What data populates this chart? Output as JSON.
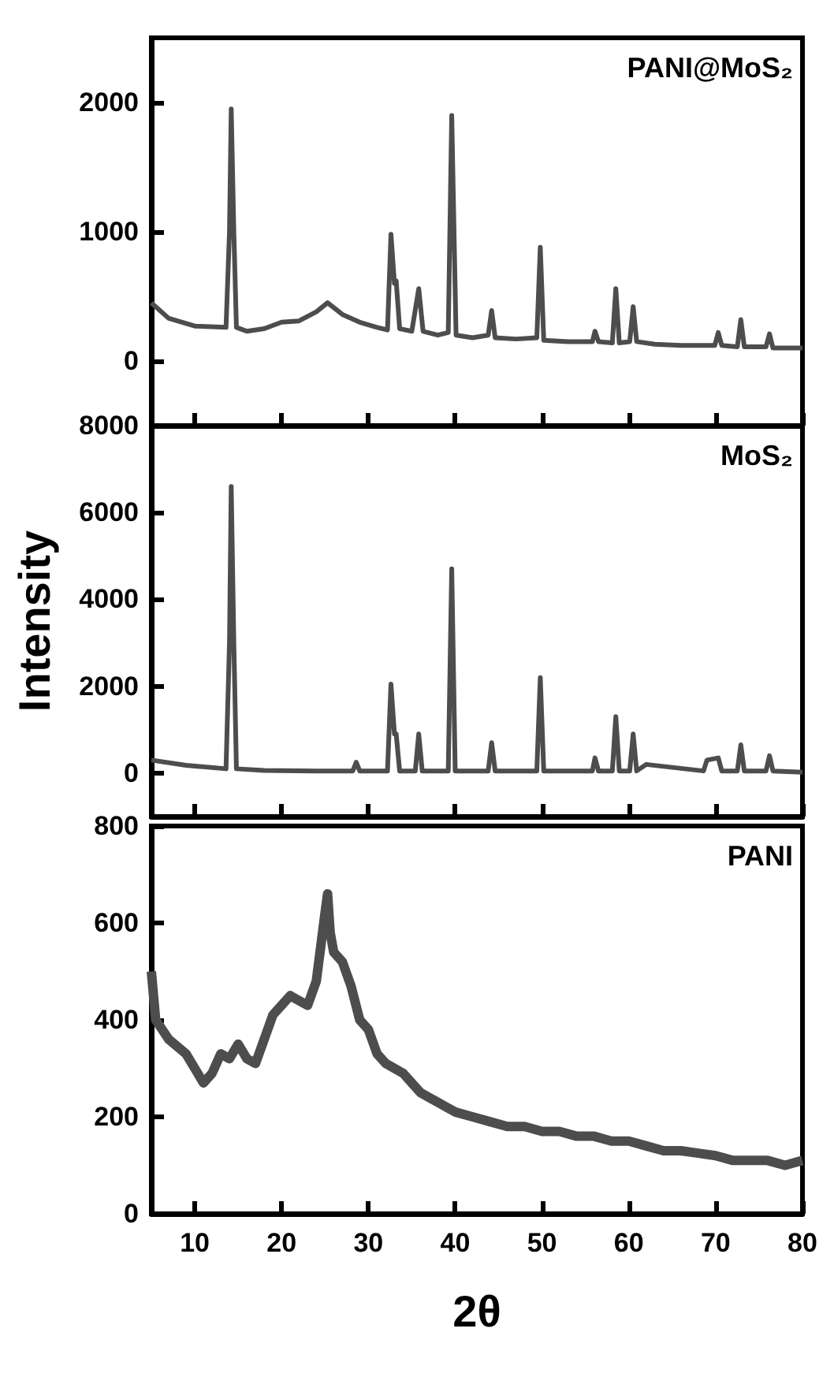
{
  "chart_data": [
    {
      "type": "line",
      "annotations": [
        "PANI@MoS₂"
      ],
      "xlim": [
        5,
        80
      ],
      "xticks": [
        10,
        20,
        30,
        40,
        50,
        60,
        70,
        80
      ],
      "ylim": [
        -500,
        2500
      ],
      "yticks": [
        0,
        1000,
        2000
      ],
      "tick_labels": "y",
      "x": [
        5,
        7,
        10,
        13.6,
        14.0,
        14.2,
        14.5,
        14.8,
        16,
        18,
        20,
        22,
        24,
        25.3,
        27,
        29,
        31,
        32.2,
        32.6,
        33.0,
        33.2,
        33.6,
        35,
        35.8,
        36.3,
        38,
        39.2,
        39.6,
        40.1,
        42,
        43.8,
        44.2,
        44.6,
        47,
        49.4,
        49.8,
        50.2,
        53,
        55.8,
        56.1,
        56.5,
        58.1,
        58.5,
        58.9,
        60.1,
        60.5,
        60.9,
        63,
        66,
        69.9,
        70.3,
        70.7,
        72.5,
        72.9,
        73.3,
        75.8,
        76.2,
        76.6,
        80
      ],
      "series": [
        {
          "color": "#4d4d4d",
          "values": [
            450,
            330,
            270,
            260,
            1000,
            1950,
            1000,
            260,
            230,
            250,
            300,
            310,
            380,
            450,
            360,
            300,
            260,
            240,
            980,
            600,
            620,
            250,
            230,
            560,
            230,
            200,
            220,
            1900,
            200,
            180,
            200,
            390,
            180,
            170,
            180,
            880,
            160,
            150,
            150,
            230,
            150,
            140,
            560,
            140,
            150,
            420,
            150,
            130,
            120,
            120,
            220,
            120,
            110,
            320,
            110,
            110,
            210,
            100,
            100
          ]
        }
      ]
    },
    {
      "type": "line",
      "ylabel": "Intensity",
      "annotations": [
        "MoS₂"
      ],
      "xlim": [
        5,
        80
      ],
      "xticks": [
        10,
        20,
        30,
        40,
        50,
        60,
        70,
        80
      ],
      "ylim": [
        -1000,
        8000
      ],
      "yticks": [
        0,
        2000,
        4000,
        6000,
        8000
      ],
      "tick_labels": "y",
      "x": [
        5,
        9,
        13.6,
        14.0,
        14.2,
        14.5,
        14.8,
        18,
        24,
        28.2,
        28.6,
        29,
        32.2,
        32.6,
        33.0,
        33.2,
        33.6,
        35.4,
        35.8,
        36.2,
        39.2,
        39.6,
        40.0,
        43.8,
        44.2,
        44.6,
        49.4,
        49.8,
        50.2,
        55.8,
        56.1,
        56.5,
        58.1,
        58.5,
        58.9,
        60.1,
        60.5,
        60.9,
        62,
        68.6,
        69,
        70.3,
        70.7,
        72.5,
        72.9,
        73.3,
        75.8,
        76.2,
        76.6,
        80
      ],
      "series": [
        {
          "color": "#4d4d4d",
          "values": [
            300,
            180,
            100,
            3000,
            6600,
            3000,
            100,
            60,
            50,
            50,
            250,
            50,
            50,
            2050,
            900,
            900,
            50,
            50,
            900,
            50,
            50,
            4700,
            50,
            50,
            700,
            50,
            50,
            2200,
            50,
            50,
            350,
            50,
            50,
            1300,
            50,
            50,
            900,
            50,
            200,
            50,
            300,
            350,
            50,
            50,
            650,
            50,
            50,
            400,
            50,
            20
          ]
        }
      ]
    },
    {
      "type": "line",
      "xlabel": "2θ",
      "annotations": [
        "PANI"
      ],
      "xlim": [
        5,
        80
      ],
      "xticks": [
        10,
        20,
        30,
        40,
        50,
        60,
        70,
        80
      ],
      "ylim": [
        0,
        800
      ],
      "yticks": [
        0,
        200,
        400,
        600,
        800
      ],
      "x": [
        5,
        5.5,
        7,
        9,
        10,
        11,
        12,
        13,
        14,
        15,
        16,
        17,
        18,
        19,
        20,
        21,
        22,
        23,
        24,
        25,
        25.3,
        25.6,
        26,
        27,
        28,
        29,
        30,
        31,
        32,
        33,
        34,
        35,
        36,
        37,
        38,
        39,
        40,
        42,
        44,
        46,
        48,
        50,
        52,
        54,
        56,
        58,
        60,
        62,
        64,
        66,
        68,
        70,
        72,
        74,
        76,
        78,
        80
      ],
      "series": [
        {
          "color": "#4d4d4d",
          "values": [
            500,
            400,
            360,
            330,
            300,
            270,
            290,
            330,
            320,
            350,
            320,
            310,
            360,
            410,
            430,
            450,
            440,
            430,
            480,
            620,
            660,
            580,
            540,
            520,
            470,
            400,
            380,
            330,
            310,
            300,
            290,
            270,
            250,
            240,
            230,
            220,
            210,
            200,
            190,
            180,
            180,
            170,
            170,
            160,
            160,
            150,
            150,
            140,
            130,
            130,
            125,
            120,
            110,
            110,
            110,
            100,
            110
          ]
        }
      ]
    }
  ]
}
